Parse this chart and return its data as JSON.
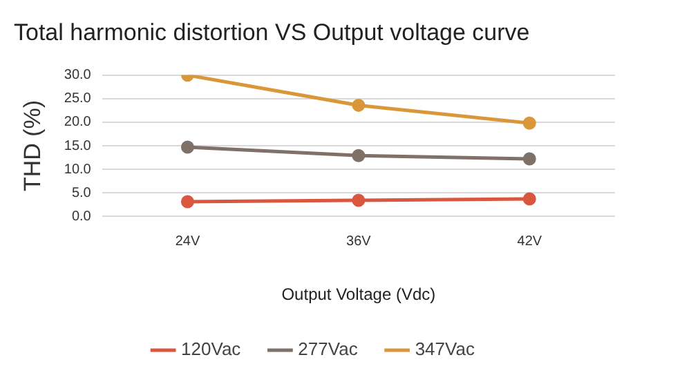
{
  "chart_data": {
    "type": "line",
    "title": "Total harmonic distortion VS Output voltage curve",
    "xlabel": "Output Voltage (Vdc)",
    "ylabel": "THD (%)",
    "categories": [
      "24V",
      "36V",
      "42V"
    ],
    "series": [
      {
        "name": "120Vac",
        "color": "#d9573f",
        "values": [
          3.1,
          3.4,
          3.7
        ]
      },
      {
        "name": "277Vac",
        "color": "#7f7068",
        "values": [
          14.7,
          12.9,
          12.2
        ]
      },
      {
        "name": "347Vac",
        "color": "#d9973a",
        "values": [
          30.0,
          23.6,
          19.8
        ]
      }
    ],
    "ylim": [
      0,
      30
    ],
    "yticks": [
      {
        "value": 0,
        "label": "0.0"
      },
      {
        "value": 5,
        "label": "5.0"
      },
      {
        "value": 10,
        "label": "10.0"
      },
      {
        "value": 15,
        "label": "15.0"
      },
      {
        "value": 20,
        "label": "20.0"
      },
      {
        "value": 25,
        "label": "25.0"
      },
      {
        "value": 30,
        "label": "30.0"
      }
    ],
    "grid": "y",
    "legend": "bottom",
    "marker": "circle",
    "line_style": "solid"
  }
}
